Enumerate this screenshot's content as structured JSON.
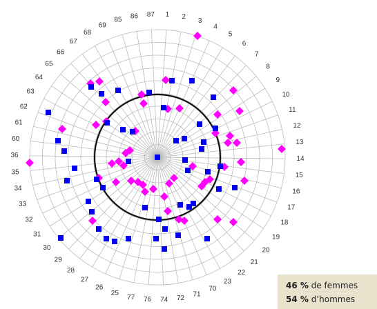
{
  "chart_data": {
    "type": "polar-scatter",
    "angle_labels": [
      "1",
      "2",
      "3",
      "4",
      "5",
      "6",
      "7",
      "8",
      "9",
      "10",
      "11",
      "12",
      "13",
      "14",
      "15",
      "16",
      "17",
      "18",
      "19",
      "20",
      "21",
      "22",
      "23",
      "70",
      "71",
      "72",
      "74",
      "76",
      "77",
      "25",
      "26",
      "27",
      "28",
      "29",
      "30",
      "31",
      "32",
      "33",
      "34",
      "35",
      "36",
      "60",
      "61",
      "62",
      "63",
      "64",
      "65",
      "66",
      "67",
      "68",
      "69",
      "85",
      "86",
      "87"
    ],
    "xlim": [
      -185,
      185
    ],
    "ylim": [
      -185,
      185
    ],
    "rings": 10,
    "reference_r": 91,
    "grid": true,
    "series": [
      {
        "color": "#ff00ff",
        "marker": "diamond",
        "x": [
          58,
          -84,
          -97,
          12,
          110,
          -23,
          -20,
          -75,
          -89,
          119,
          -74,
          15,
          32,
          87,
          -32,
          84,
          -138,
          105,
          115,
          180,
          -185,
          -40,
          -46,
          -49,
          -56,
          97,
          121,
          -66,
          69,
          76,
          64,
          24,
          51,
          -85,
          -38,
          -28,
          -21,
          -60,
          -6,
          17,
          10,
          126,
          -18,
          -94,
          15,
          39,
          87,
          110,
          31,
          102
        ],
        "y": [
          176,
          110,
          107,
          112,
          97,
          91,
          78,
          80,
          47,
          67,
          52,
          70,
          71,
          62,
          38,
          35,
          41,
          31,
          21,
          12,
          -8,
          10,
          6,
          -12,
          -6,
          -14,
          -7,
          -9,
          -36,
          -32,
          -42,
          -30,
          -13,
          -30,
          -34,
          -36,
          -40,
          -36,
          -46,
          -38,
          -57,
          -34,
          -50,
          -92,
          -78,
          -92,
          -90,
          -94,
          -90,
          21
        ]
      },
      {
        "color": "#0000ee",
        "marker": "square",
        "x": [
          50,
          21,
          -12,
          -96,
          -57,
          -81,
          9,
          81,
          61,
          -158,
          -73,
          -50,
          -36,
          84,
          -144,
          -135,
          27,
          39,
          67,
          64,
          0,
          40,
          -42,
          -120,
          91,
          73,
          44,
          -88,
          -131,
          -79,
          112,
          89,
          -100,
          52,
          33,
          -18,
          2,
          46,
          -95,
          -85,
          -74,
          -62,
          -42,
          -140,
          -2,
          30,
          11,
          72,
          10
        ],
        "y": [
          111,
          111,
          94,
          102,
          97,
          92,
          72,
          87,
          48,
          65,
          50,
          40,
          37,
          42,
          24,
          9,
          24,
          27,
          22,
          12,
          0,
          -4,
          -6,
          -16,
          -13,
          -21,
          -19,
          -32,
          -34,
          -44,
          -44,
          -46,
          -64,
          -67,
          -69,
          -73,
          -90,
          -72,
          -79,
          -104,
          -118,
          -122,
          -118,
          -117,
          -118,
          -113,
          -104,
          -118,
          -133
        ]
      }
    ],
    "annotations": [
      {
        "bold": "46 %",
        "text": "de femmes"
      },
      {
        "bold": "54 %",
        "text": "d’hommes"
      }
    ]
  }
}
